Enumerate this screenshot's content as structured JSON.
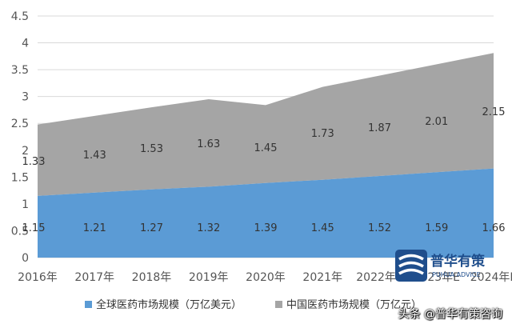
{
  "chart_data": {
    "type": "area",
    "stacked": true,
    "categories": [
      "2016年",
      "2017年",
      "2018年",
      "2019年",
      "2020年",
      "2021年",
      "2022年E",
      "2023年E",
      "2024年E"
    ],
    "series": [
      {
        "name": "全球医药市场规模（万亿美元）",
        "values": [
          1.15,
          1.21,
          1.27,
          1.32,
          1.39,
          1.45,
          1.52,
          1.59,
          1.66
        ],
        "labels": [
          "1.15",
          "1.21",
          "1.27",
          "1.32",
          "1.39",
          "1.45",
          "1.52",
          "1.59",
          "1.66"
        ],
        "color": "#5B9BD5"
      },
      {
        "name": "中国医药市场规模（万亿元）",
        "values": [
          1.33,
          1.43,
          1.53,
          1.63,
          1.45,
          1.73,
          1.87,
          2.01,
          2.15
        ],
        "labels": [
          "1.33",
          "1.43",
          "1.53",
          "1.63",
          "1.45",
          "1.73",
          "1.87",
          "2.01",
          "2.15"
        ],
        "color": "#A5A5A5"
      }
    ],
    "y_ticks": [
      "0",
      "0.5",
      "1",
      "1.5",
      "2",
      "2.5",
      "3",
      "3.5",
      "4",
      "4.5"
    ],
    "ylim": [
      0,
      4.5
    ],
    "grid": true,
    "legend_position": "bottom",
    "title": "",
    "xlabel": "",
    "ylabel": ""
  },
  "watermark": "头条 @普华有策咨询",
  "logo_text": "普华有策",
  "logo_subtext": "PUHUA ADVICE"
}
